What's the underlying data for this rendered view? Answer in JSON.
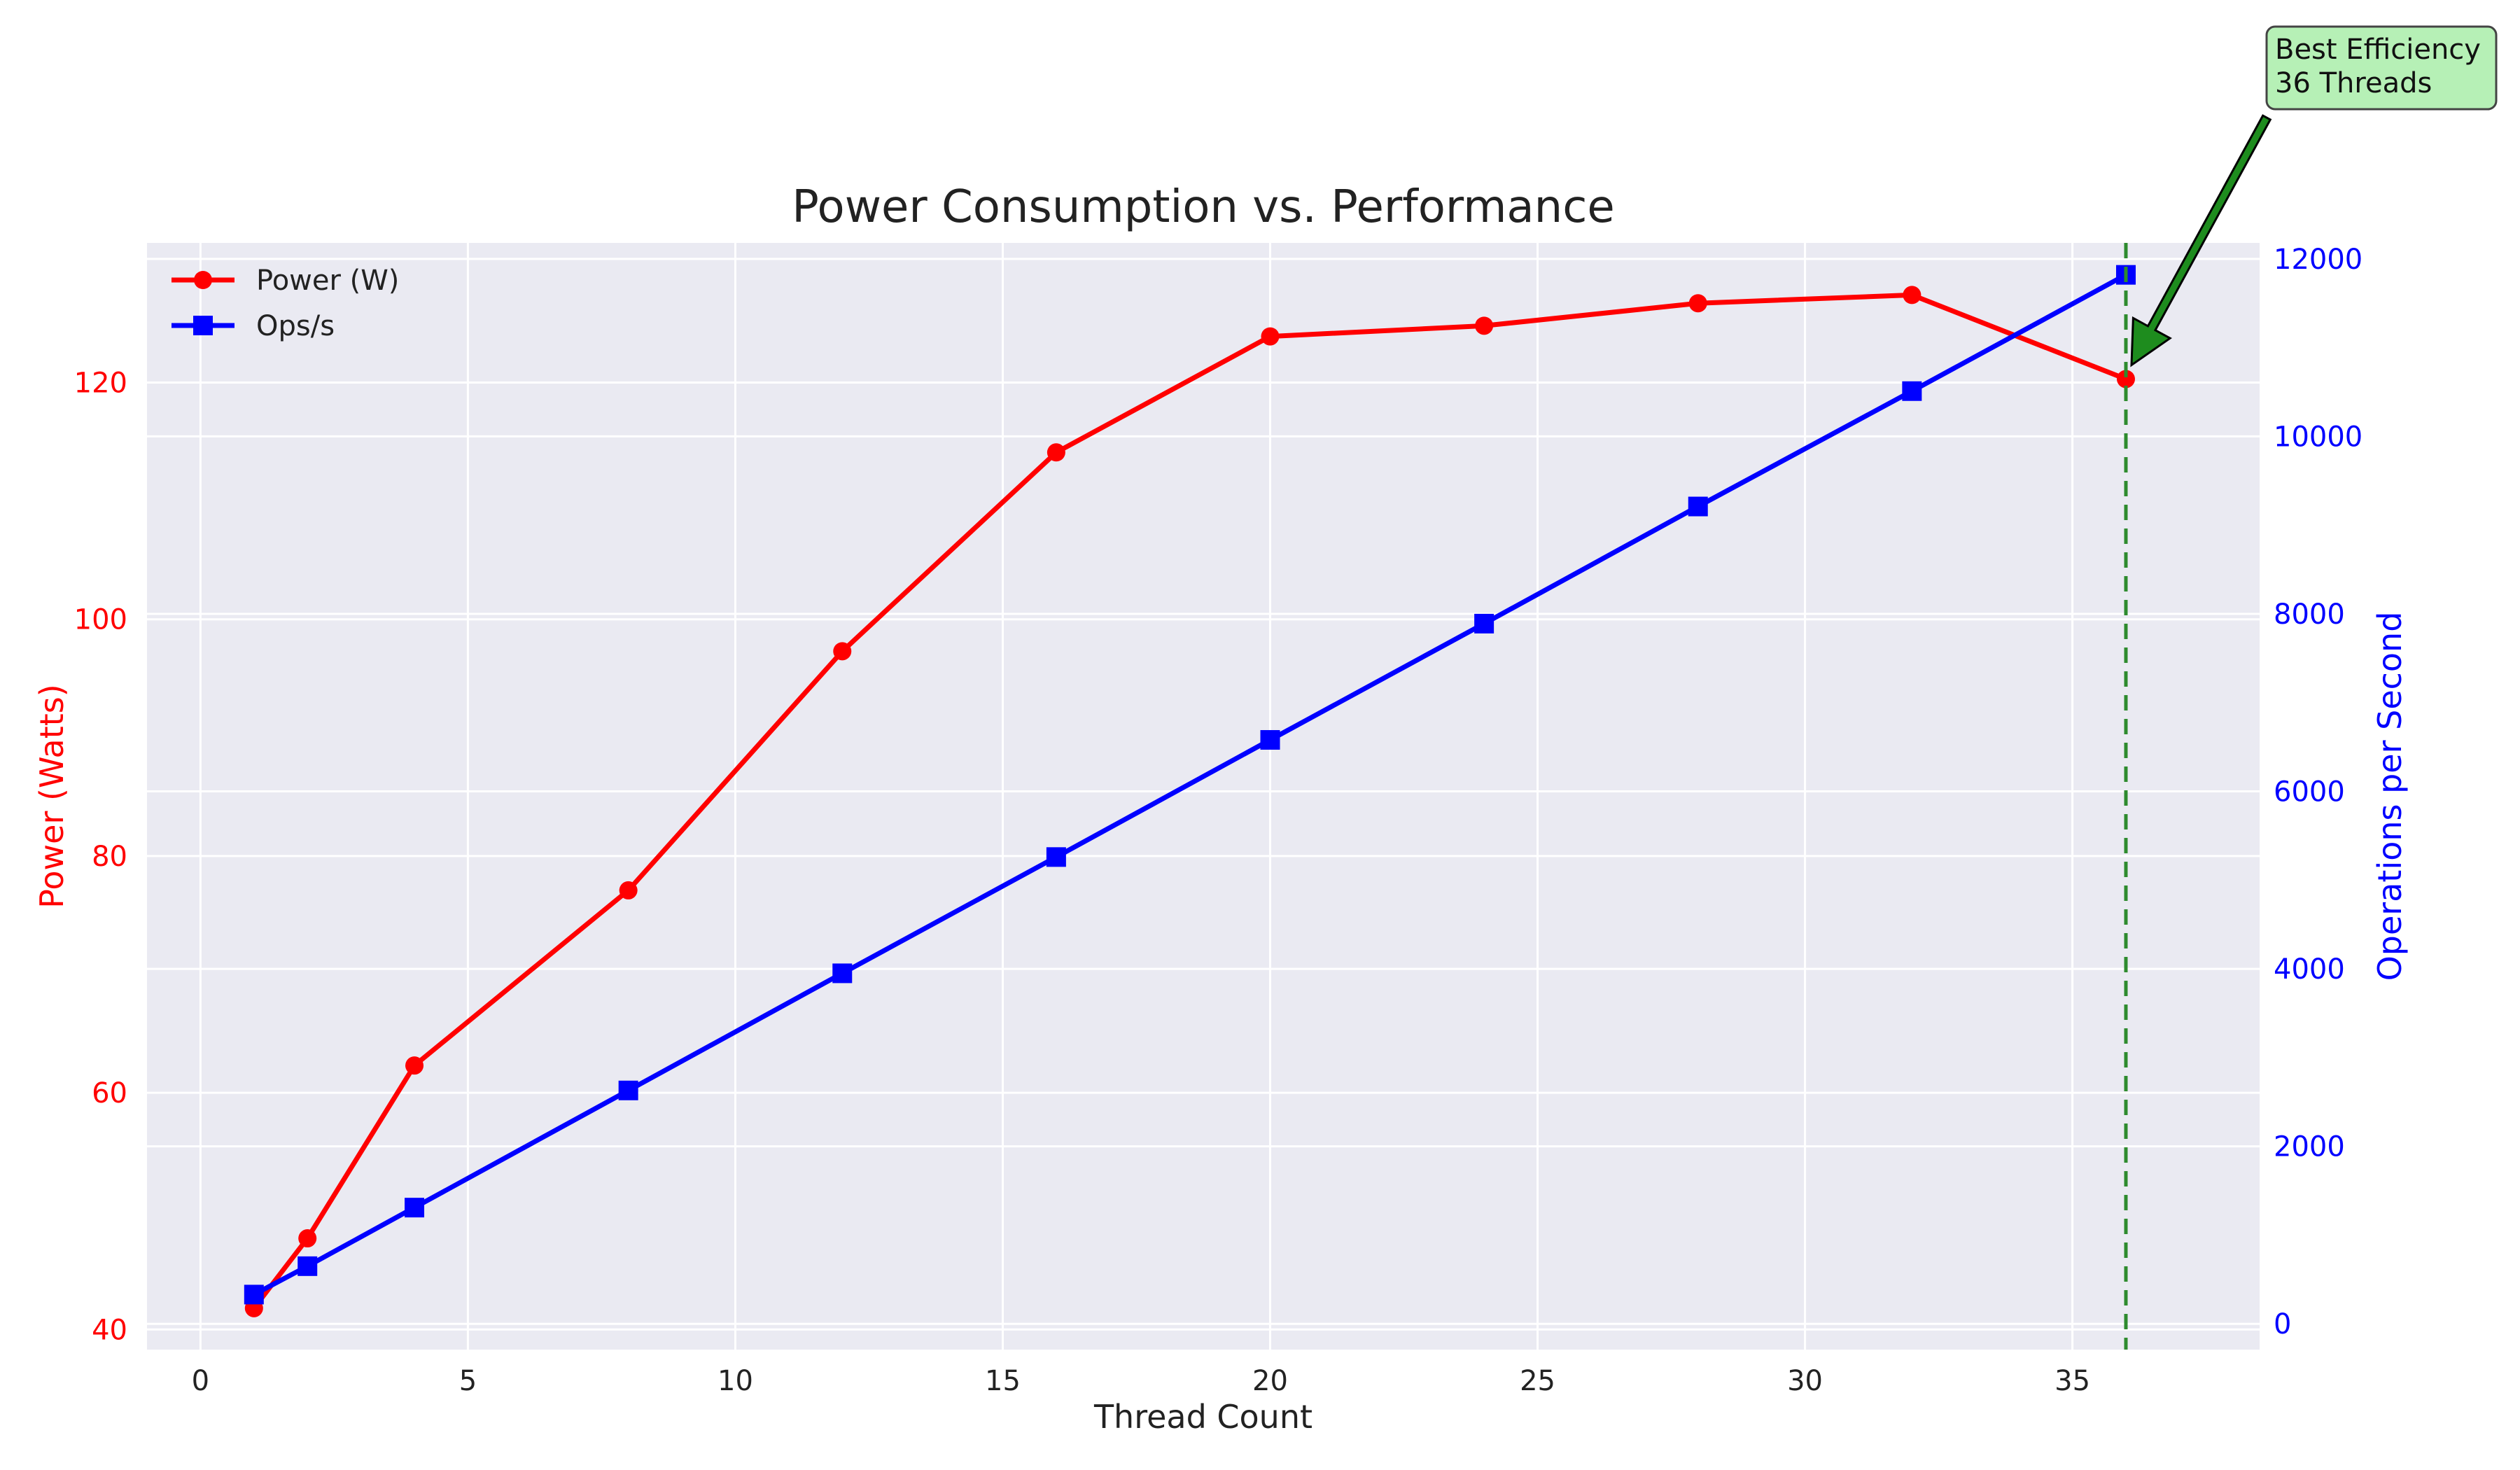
{
  "chart_data": {
    "type": "line",
    "title": "Power Consumption vs. Performance",
    "xlabel": "Thread Count",
    "xlim": [
      -1,
      38.5
    ],
    "xticks": [
      0,
      5,
      10,
      15,
      20,
      25,
      30,
      35
    ],
    "x": [
      1,
      2,
      4,
      8,
      12,
      16,
      20,
      24,
      28,
      32,
      36
    ],
    "grid": true,
    "legend_position": "top-left",
    "y_left": {
      "label": "Power (Watts)",
      "color": "#ff0000",
      "lim": [
        38.3,
        131.8
      ],
      "ticks": [
        40,
        60,
        80,
        100,
        120
      ]
    },
    "y_right": {
      "label": "Operations per Second",
      "color": "#0000ff",
      "lim": [
        -290,
        12180
      ],
      "ticks": [
        0,
        2000,
        4000,
        6000,
        8000,
        10000,
        12000
      ]
    },
    "series": [
      {
        "name": "Power (W)",
        "axis": "left",
        "color": "#ff0000",
        "marker": "circle",
        "values": [
          41.8,
          47.7,
          62.3,
          77.1,
          97.3,
          114.1,
          123.9,
          124.8,
          126.7,
          127.4,
          120.3
        ]
      },
      {
        "name": "Ops/s",
        "axis": "right",
        "color": "#0000ff",
        "marker": "square",
        "values": [
          330,
          650,
          1310,
          2630,
          3950,
          5260,
          6580,
          7890,
          9210,
          10510,
          11820
        ]
      }
    ],
    "annotation": {
      "text_lines": [
        "Best Efficiency",
        "36 Threads"
      ],
      "x": 36,
      "y_power": 120.3,
      "vline_x": 36,
      "vline_color": "#2e8b2e",
      "arrow_color": "#1e8c1e",
      "box_color": "#b6f0b6"
    }
  }
}
